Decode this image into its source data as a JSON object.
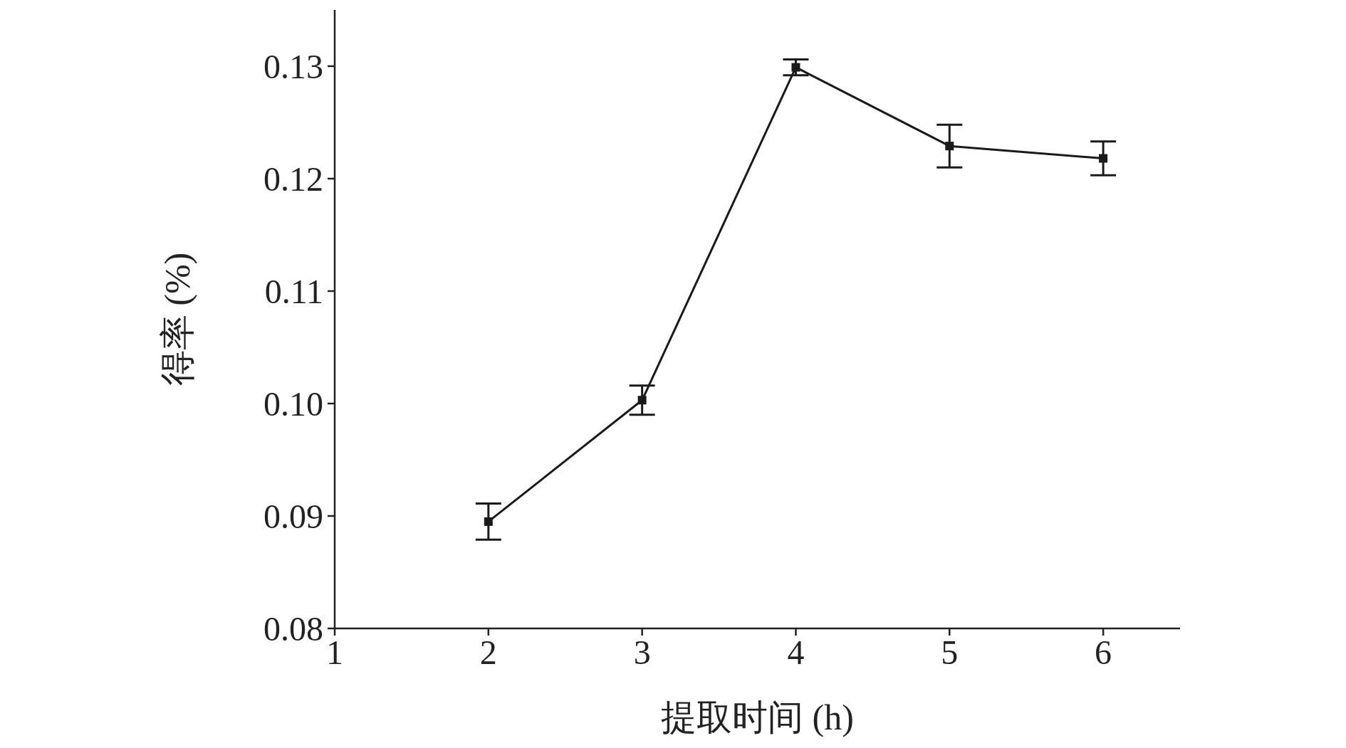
{
  "chart_data": {
    "type": "line",
    "xlabel": "提取时间 (h)",
    "ylabel": "得率 (%)",
    "x": [
      2,
      3,
      4,
      5,
      6
    ],
    "series": [
      {
        "color": "#1a1a1a",
        "values": [
          0.0895,
          0.1003,
          0.1299,
          0.1229,
          0.1218
        ],
        "errors": [
          0.0016,
          0.0013,
          0.0007,
          0.0019,
          0.0015
        ]
      }
    ],
    "xlim": [
      1,
      6.5
    ],
    "xticks": [
      1,
      2,
      3,
      4,
      5,
      6
    ],
    "ylim": [
      0.08,
      0.135
    ],
    "yticks": [
      0.08,
      0.09,
      {
        "value": 0.1,
        "label": "0.10"
      },
      0.11,
      0.12,
      0.13
    ],
    "marker": "square",
    "line_style": "solid"
  }
}
